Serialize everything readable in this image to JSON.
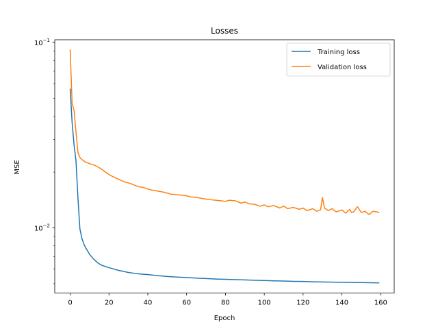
{
  "chart_data": {
    "type": "line",
    "title": "Losses",
    "xlabel": "Epoch",
    "ylabel": "MSE",
    "yscale": "log",
    "xlim": [
      -7.95,
      166.95
    ],
    "ylim": [
      0.00445,
      0.1035
    ],
    "x_ticks": [
      0,
      20,
      40,
      60,
      80,
      100,
      120,
      140,
      160
    ],
    "x_tick_labels": [
      "0",
      "20",
      "40",
      "60",
      "80",
      "100",
      "120",
      "140",
      "160"
    ],
    "y_major_ticks": [
      0.01,
      0.1
    ],
    "y_tick_labels": [
      {
        "base": "10",
        "exp": "−2"
      },
      {
        "base": "10",
        "exp": "−1"
      }
    ],
    "legend_position": "upper right",
    "grid": false,
    "series": [
      {
        "name": "Training loss",
        "color": "#1f77b4",
        "x": [
          0,
          1,
          2,
          3,
          4,
          5,
          6,
          7,
          8,
          9,
          10,
          12,
          14,
          16,
          18,
          20,
          25,
          30,
          35,
          40,
          45,
          50,
          55,
          60,
          65,
          70,
          75,
          80,
          85,
          90,
          95,
          100,
          105,
          110,
          115,
          120,
          125,
          130,
          135,
          140,
          145,
          150,
          155,
          159
        ],
        "y": [
          0.056,
          0.037,
          0.028,
          0.023,
          0.0145,
          0.0099,
          0.0088,
          0.0082,
          0.0078,
          0.0075,
          0.0072,
          0.0068,
          0.0065,
          0.0063,
          0.0062,
          0.0061,
          0.0059,
          0.00575,
          0.00565,
          0.0056,
          0.00553,
          0.00547,
          0.00543,
          0.0054,
          0.00536,
          0.00533,
          0.0053,
          0.00528,
          0.00526,
          0.00524,
          0.00522,
          0.0052,
          0.00518,
          0.00517,
          0.00515,
          0.00514,
          0.00512,
          0.00511,
          0.0051,
          0.00509,
          0.00508,
          0.00507,
          0.00506,
          0.00505
        ]
      },
      {
        "name": "Validation loss",
        "color": "#ff7f0e",
        "x": [
          0,
          1,
          2,
          3,
          4,
          5,
          6,
          8,
          10,
          12,
          14,
          16,
          18,
          20,
          22,
          25,
          28,
          30,
          32,
          35,
          38,
          40,
          42,
          45,
          48,
          50,
          52,
          55,
          58,
          60,
          62,
          65,
          68,
          70,
          72,
          75,
          78,
          80,
          82,
          85,
          88,
          90,
          92,
          95,
          98,
          100,
          102,
          105,
          108,
          110,
          112,
          115,
          118,
          120,
          122,
          125,
          127,
          129,
          130,
          131,
          133,
          135,
          137,
          140,
          142,
          144,
          145,
          146,
          148,
          150,
          152,
          154,
          156,
          158,
          159
        ],
        "y": [
          0.091,
          0.047,
          0.043,
          0.033,
          0.0255,
          0.024,
          0.0234,
          0.0226,
          0.0222,
          0.0219,
          0.0214,
          0.0208,
          0.0201,
          0.0194,
          0.0189,
          0.0183,
          0.0177,
          0.0175,
          0.0172,
          0.0167,
          0.0165,
          0.0162,
          0.016,
          0.0158,
          0.0156,
          0.0154,
          0.0152,
          0.0151,
          0.015,
          0.0149,
          0.0147,
          0.0146,
          0.0144,
          0.0143,
          0.0142,
          0.0141,
          0.014,
          0.0139,
          0.0141,
          0.014,
          0.0136,
          0.0138,
          0.0135,
          0.0134,
          0.0131,
          0.0133,
          0.013,
          0.0132,
          0.0128,
          0.0131,
          0.0127,
          0.0129,
          0.0126,
          0.0128,
          0.0124,
          0.0127,
          0.0123,
          0.0125,
          0.0146,
          0.0128,
          0.0124,
          0.0127,
          0.0122,
          0.0125,
          0.012,
          0.0126,
          0.0121,
          0.0122,
          0.013,
          0.0121,
          0.0123,
          0.0118,
          0.0123,
          0.0122,
          0.0121
        ]
      }
    ]
  }
}
